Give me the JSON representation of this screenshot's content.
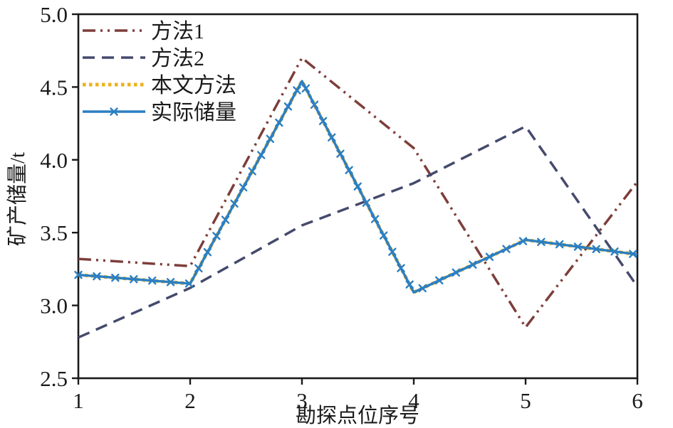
{
  "figure": {
    "type_hint": "scientific line chart",
    "background": "#ffffff",
    "frame_color": "#1a1a1a"
  },
  "axes": {
    "x_label": "勘探点位序号",
    "y_label": "矿产储量/t",
    "x_tick_labels": [
      "1",
      "2",
      "3",
      "4",
      "5",
      "6"
    ],
    "y_tick_labels": [
      "2.5",
      "3.0",
      "3.5",
      "4.0",
      "4.5",
      "5.0"
    ]
  },
  "legend": {
    "position": "upper-left",
    "frame": false,
    "items": [
      "方法1",
      "方法2",
      "本文方法",
      "实际储量"
    ]
  },
  "chart_data": {
    "type": "line",
    "x": [
      1,
      2,
      3,
      4,
      5,
      6
    ],
    "series": [
      {
        "name": "方法1",
        "values": [
          3.32,
          3.27,
          4.7,
          4.08,
          2.85,
          3.85
        ],
        "color": "#7d3e3a",
        "line_style": "dash-dot-dot",
        "marker": "none"
      },
      {
        "name": "方法2",
        "values": [
          2.78,
          3.12,
          3.55,
          3.84,
          4.23,
          3.13
        ],
        "color": "#454a6d",
        "line_style": "dashed",
        "marker": "none"
      },
      {
        "name": "本文方法",
        "values": [
          3.21,
          3.15,
          4.54,
          3.09,
          3.45,
          3.35
        ],
        "color": "#edb21f",
        "line_style": "dotted",
        "marker": "none"
      },
      {
        "name": "实际储量",
        "values": [
          3.21,
          3.15,
          4.54,
          3.09,
          3.45,
          3.35
        ],
        "color": "#2b7fc3",
        "line_style": "solid",
        "marker": "x"
      }
    ],
    "xlabel": "勘探点位序号",
    "ylabel": "矿产储量/t",
    "xlim": [
      1,
      6
    ],
    "ylim": [
      2.5,
      5.0
    ],
    "x_ticks": [
      1,
      2,
      3,
      4,
      5,
      6
    ],
    "y_ticks": [
      2.5,
      3.0,
      3.5,
      4.0,
      4.5,
      5.0
    ],
    "grid": false,
    "legend_position": "upper-left",
    "note": "本文方法 and 实际储量 curves coincide (yellow dotted overlays blue solid with x markers)"
  }
}
